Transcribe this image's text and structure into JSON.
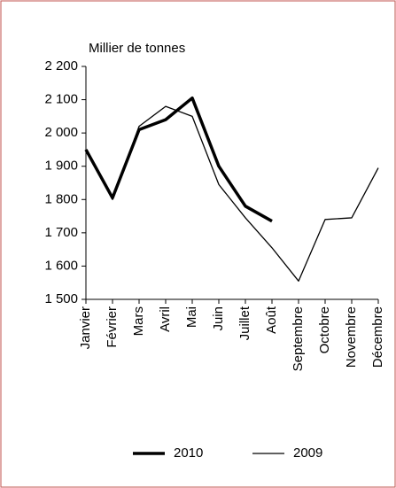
{
  "chart_data": {
    "type": "line",
    "y_label": "Millier de tonnes",
    "categories": [
      "Janvier",
      "Février",
      "Mars",
      "Avril",
      "Mai",
      "Juin",
      "Juillet",
      "Août",
      "Septembre",
      "Octobre",
      "Novembre",
      "Décembre"
    ],
    "series": [
      {
        "name": "2010",
        "color": "#000000",
        "width": 3.5,
        "values": [
          1950,
          1805,
          2010,
          2040,
          2105,
          1900,
          1780,
          1735,
          null,
          null,
          null,
          null
        ]
      },
      {
        "name": "2009",
        "color": "#000000",
        "width": 1.3,
        "values": [
          1950,
          1800,
          2020,
          2080,
          2050,
          1845,
          1745,
          1655,
          1555,
          1740,
          1745,
          1895
        ]
      }
    ],
    "ylim": [
      1500,
      2200
    ],
    "yticks": [
      {
        "value": 1500,
        "label": "1 500"
      },
      {
        "value": 1600,
        "label": "1 600"
      },
      {
        "value": 1700,
        "label": "1 700"
      },
      {
        "value": 1800,
        "label": "1 800"
      },
      {
        "value": 1900,
        "label": "1 900"
      },
      {
        "value": 2000,
        "label": "2 000"
      },
      {
        "value": 2100,
        "label": "2 100"
      },
      {
        "value": 2200,
        "label": "2 200"
      }
    ],
    "grid": false,
    "legend": "bottom"
  }
}
